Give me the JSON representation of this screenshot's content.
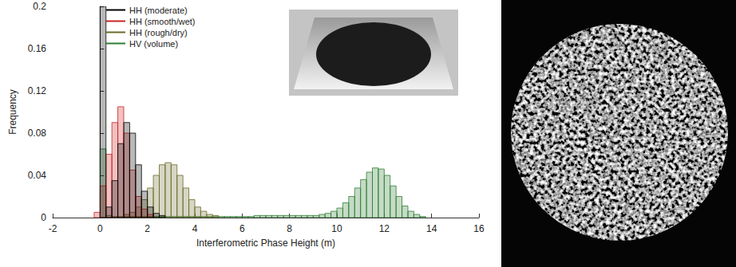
{
  "chart_data": {
    "type": "histogram",
    "xlabel": "Interferometric Phase Height (m)",
    "ylabel": "Frequency",
    "bins": [
      -1,
      -0.75,
      -0.5,
      -0.25,
      0,
      0.25,
      0.5,
      0.75,
      1,
      1.25,
      1.5,
      1.75,
      2,
      2.25,
      2.5,
      2.75,
      3,
      3.25,
      3.5,
      3.75,
      4,
      4.25,
      4.5,
      4.75,
      5,
      5.25,
      5.5,
      5.75,
      6,
      6.25,
      6.5,
      6.75,
      7,
      7.25,
      7.5,
      7.75,
      8,
      8.25,
      8.5,
      8.75,
      9,
      9.25,
      9.5,
      9.75,
      10,
      10.25,
      10.5,
      10.75,
      11,
      11.25,
      11.5,
      11.75,
      12,
      12.25,
      12.5,
      12.75,
      13,
      13.25,
      13.5,
      13.75,
      14
    ],
    "series": [
      {
        "name": "HH (moderate)",
        "color": "#000000",
        "values": [
          0,
          0,
          0,
          0,
          0.2,
          0.01,
          0.035,
          0.07,
          0.09,
          0.08,
          0.05,
          0.025,
          0.01,
          0.004,
          0.002,
          0,
          0,
          0,
          0,
          0,
          0,
          0,
          0,
          0,
          0,
          0,
          0,
          0,
          0,
          0,
          0,
          0,
          0,
          0,
          0,
          0,
          0,
          0,
          0,
          0,
          0,
          0,
          0,
          0,
          0,
          0,
          0,
          0,
          0,
          0,
          0,
          0,
          0,
          0,
          0,
          0,
          0,
          0,
          0,
          0
        ]
      },
      {
        "name": "HH (smooth/wet)",
        "color": "#cc2222",
        "values": [
          0,
          0,
          0,
          0.005,
          0.03,
          0.06,
          0.09,
          0.105,
          0.08,
          0.045,
          0.02,
          0.008,
          0.003,
          0,
          0,
          0,
          0,
          0,
          0,
          0,
          0,
          0,
          0,
          0,
          0,
          0,
          0,
          0,
          0,
          0,
          0,
          0,
          0,
          0,
          0,
          0,
          0,
          0,
          0,
          0,
          0,
          0,
          0,
          0,
          0,
          0,
          0,
          0,
          0,
          0,
          0,
          0,
          0,
          0,
          0,
          0,
          0,
          0,
          0,
          0
        ]
      },
      {
        "name": "HH (rough/dry)",
        "color": "#6b6b2a",
        "values": [
          0,
          0,
          0,
          0,
          0,
          0,
          0,
          0,
          0.003,
          0.005,
          0.01,
          0.017,
          0.028,
          0.04,
          0.05,
          0.052,
          0.05,
          0.04,
          0.028,
          0.017,
          0.01,
          0.006,
          0.003,
          0.002,
          0,
          0,
          0,
          0,
          0,
          0,
          0,
          0,
          0,
          0,
          0,
          0,
          0,
          0,
          0,
          0,
          0,
          0,
          0,
          0,
          0,
          0,
          0,
          0,
          0,
          0,
          0,
          0,
          0,
          0,
          0,
          0,
          0,
          0,
          0,
          0
        ]
      },
      {
        "name": "HV (volume)",
        "color": "#2e7d32",
        "values": [
          0,
          0,
          0,
          0,
          0.065,
          0.002,
          0.001,
          0.001,
          0.001,
          0.001,
          0.001,
          0.001,
          0.001,
          0.001,
          0.001,
          0.001,
          0.001,
          0.001,
          0.001,
          0.001,
          0.001,
          0.001,
          0.001,
          0.001,
          0.001,
          0.001,
          0.001,
          0.001,
          0.001,
          0.001,
          0.002,
          0.002,
          0.002,
          0.002,
          0.002,
          0.002,
          0.002,
          0.002,
          0.002,
          0.002,
          0.002,
          0.003,
          0.004,
          0.006,
          0.009,
          0.014,
          0.02,
          0.028,
          0.036,
          0.043,
          0.047,
          0.046,
          0.04,
          0.03,
          0.02,
          0.011,
          0.006,
          0.003,
          0.001,
          0
        ]
      }
    ],
    "xlim": [
      -2,
      16
    ],
    "xticks": [
      -2,
      0,
      2,
      4,
      6,
      8,
      10,
      12,
      14,
      16
    ],
    "ylim": [
      0,
      0.2
    ],
    "yticks": [
      0,
      0.04,
      0.08,
      0.12,
      0.16,
      0.2
    ],
    "legend": "upper left",
    "grid": false
  }
}
